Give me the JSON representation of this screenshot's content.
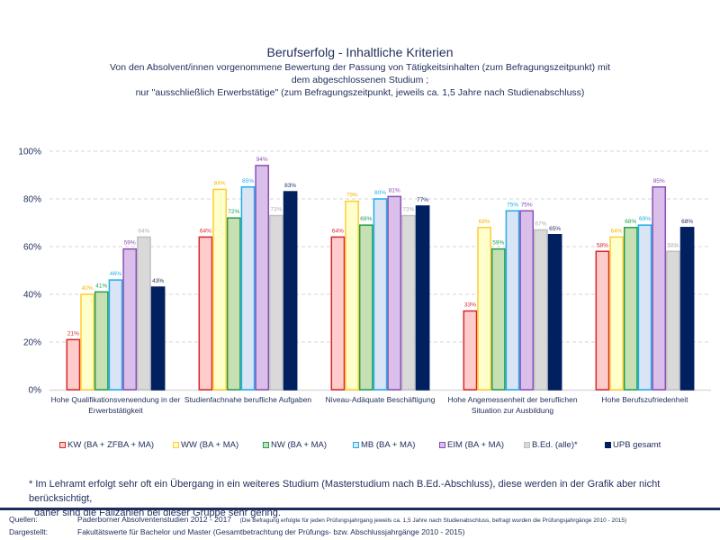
{
  "chart_data": {
    "type": "bar",
    "title": "Berufserfolg - Inhaltliche Kriterien",
    "subtitle_lines": [
      "Von den Absolvent/innen vorgenommene Bewertung der Passung von Tätigkeitsinhalten (zum Befragungszeitpunkt) mit",
      "dem abgeschlossenen Studium ;",
      "nur \"ausschließlich Erwerbstätige\" (zum Befragungszeitpunkt, jeweils ca. 1,5 Jahre nach Studienabschluss)"
    ],
    "xlabel": "",
    "ylabel": "",
    "ylim": [
      0,
      100
    ],
    "yticks": [
      "0%",
      "20%",
      "40%",
      "60%",
      "80%",
      "100%"
    ],
    "ytick_values": [
      0,
      20,
      40,
      60,
      80,
      100
    ],
    "grid": true,
    "legend_position": "bottom",
    "categories": [
      [
        "Hohe Qualifikationsverwendung in der",
        "Erwerbstätigkeit"
      ],
      [
        "Studienfachnahe berufliche Aufgaben"
      ],
      [
        "Niveau-Adäquate Beschäftigung"
      ],
      [
        "Hohe Angemessenheit der beruflichen",
        "Situation zur Ausbildung"
      ],
      [
        "Hohe Berufszufriedenheit"
      ]
    ],
    "series": [
      {
        "name": "KW (BA + ZFBA + MA)",
        "fill": "#ffcccc",
        "stroke": "#d9262c",
        "label_color": "#d9262c",
        "values": [
          21,
          64,
          64,
          33,
          58
        ]
      },
      {
        "name": "WW (BA + MA)",
        "fill": "#ffffcc",
        "stroke": "#ffcc33",
        "label_color": "#f5b800",
        "values": [
          40,
          84,
          79,
          68,
          64
        ]
      },
      {
        "name": "NW (BA + MA)",
        "fill": "#c6e0b4",
        "stroke": "#22a050",
        "label_color": "#22a050",
        "values": [
          41,
          72,
          69,
          59,
          68
        ]
      },
      {
        "name": "MB (BA + MA)",
        "fill": "#d9e4f5",
        "stroke": "#1eaee8",
        "label_color": "#1eaee8",
        "values": [
          46,
          85,
          80,
          75,
          69
        ]
      },
      {
        "name": "EIM (BA + MA)",
        "fill": "#d9bfea",
        "stroke": "#8a4fb5",
        "label_color": "#8a4fb5",
        "values": [
          59,
          94,
          81,
          75,
          85
        ]
      },
      {
        "name": "B.Ed. (alle)*",
        "fill": "#d9d9d9",
        "stroke": "#c0c0c0",
        "label_color": "#b0b0b0",
        "values": [
          64,
          73,
          73,
          67,
          58
        ]
      },
      {
        "name": "UPB gesamt",
        "fill": "#002060",
        "stroke": "#002060",
        "label_color": "#1f2d5a",
        "values": [
          43,
          83,
          77,
          65,
          68
        ]
      }
    ],
    "value_label_suffix": "%"
  },
  "footnote": {
    "line1": "* Im Lehramt erfolgt sehr oft ein Übergang in ein weiteres Studium (Masterstudium nach B.Ed.-Abschluss), diese werden in der Grafik aber nicht berücksichtigt,",
    "line2": "daher sind die Fallzahlen bei dieser Gruppe sehr gering."
  },
  "sources": {
    "quellen_label": "Quellen:",
    "quellen_value": "Paderborner Absolventenstudien  2012 - 2017",
    "quellen_note": "(Die Befragung erfolgte für jeden Prüfungsjahrgang jeweils ca. 1,5 Jahre nach Studienabschluss, befragt wurden die Prüfungsjahrgänge 2010 - 2015)",
    "dargestellt_label": "Dargestellt:",
    "dargestellt_value": "Fakultätswerte  für Bachelor und Master  (Gesamtbetrachtung  der Prüfungs- bzw. Abschlussjahrgänge  2010 - 2015)"
  }
}
